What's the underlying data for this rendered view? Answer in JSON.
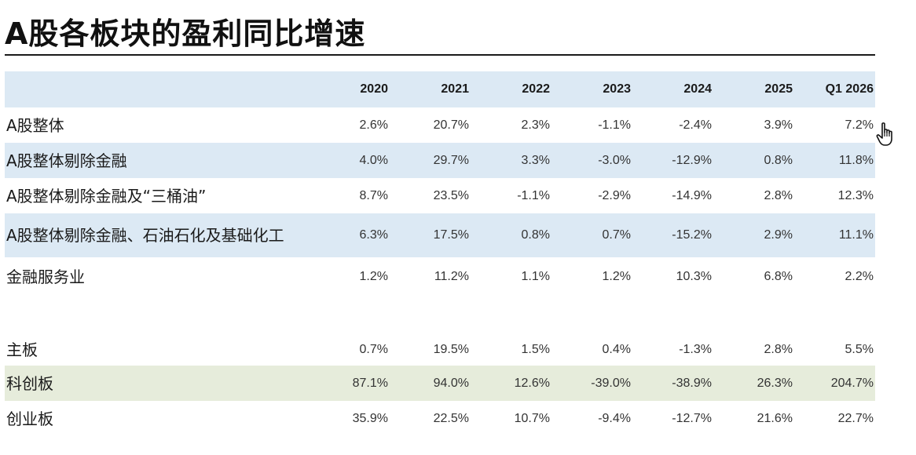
{
  "title": "A股各板块的盈利同比增速",
  "table": {
    "columns": [
      "2020",
      "2021",
      "2022",
      "2023",
      "2024",
      "2025",
      "Q1 2026"
    ],
    "rows": [
      {
        "label": "A股整体",
        "values": [
          "2.6%",
          "20.7%",
          "2.3%",
          "-1.1%",
          "-2.4%",
          "3.9%",
          "7.2%"
        ]
      },
      {
        "label": "A股整体剔除金融",
        "values": [
          "4.0%",
          "29.7%",
          "3.3%",
          "-3.0%",
          "-12.9%",
          "0.8%",
          "11.8%"
        ]
      },
      {
        "label": "A股整体剔除金融及“三桶油”",
        "values": [
          "8.7%",
          "23.5%",
          "-1.1%",
          "-2.9%",
          "-14.9%",
          "2.8%",
          "12.3%"
        ]
      },
      {
        "label": "A股整体剔除金融、石油石化及基础化工",
        "values": [
          "6.3%",
          "17.5%",
          "0.8%",
          "0.7%",
          "-15.2%",
          "2.9%",
          "11.1%"
        ]
      },
      {
        "label": "金融服务业",
        "values": [
          "1.2%",
          "11.2%",
          "1.1%",
          "1.2%",
          "10.3%",
          "6.8%",
          "2.2%"
        ]
      },
      {
        "label": "主板",
        "values": [
          "0.7%",
          "19.5%",
          "1.5%",
          "0.4%",
          "-1.3%",
          "2.8%",
          "5.5%"
        ]
      },
      {
        "label": "科创板",
        "values": [
          "87.1%",
          "94.0%",
          "12.6%",
          "-39.0%",
          "-38.9%",
          "26.3%",
          "204.7%"
        ]
      },
      {
        "label": "创业板",
        "values": [
          "35.9%",
          "22.5%",
          "10.7%",
          "-9.4%",
          "-12.7%",
          "21.6%",
          "22.7%"
        ]
      }
    ]
  },
  "colors": {
    "header_bg": "#dce9f4",
    "stripe_blue": "#dce9f4",
    "highlight_green": "#e6ecdb"
  },
  "cursor_icon": "hand-pointer-icon"
}
